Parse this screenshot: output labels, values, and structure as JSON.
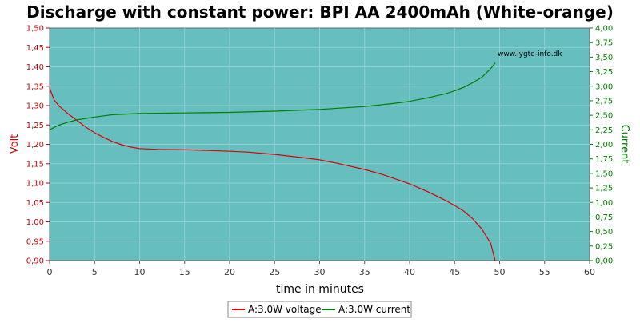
{
  "chart_data": {
    "type": "line",
    "title": "Discharge with constant power: BPI AA 2400mAh (White-orange)",
    "xlabel": "time in minutes",
    "ylabel_left": "Volt",
    "ylabel_right": "Current",
    "xlim": [
      0,
      60
    ],
    "ylim_left": [
      0.9,
      1.5
    ],
    "ylim_right": [
      0,
      4
    ],
    "x_ticks": [
      "0",
      "5",
      "10",
      "15",
      "20",
      "25",
      "30",
      "35",
      "40",
      "45",
      "50",
      "55",
      "60"
    ],
    "y_left_ticks": [
      "0,90",
      "0,95",
      "1,00",
      "1,05",
      "1,10",
      "1,15",
      "1,20",
      "1,25",
      "1,30",
      "1,35",
      "1,40",
      "1,45",
      "1,50"
    ],
    "y_right_ticks": [
      "0,00",
      "0,25",
      "0,50",
      "0,75",
      "1,00",
      "1,25",
      "1,50",
      "1,75",
      "2,00",
      "2,25",
      "2,50",
      "2,75",
      "3,00",
      "3,25",
      "3,50",
      "3,75",
      "4,00"
    ],
    "grid": true,
    "watermark": "www.lygte-info.dk",
    "legend_position": "bottom-center",
    "background_color": "#66bebe",
    "series": [
      {
        "name": "A:3.0W voltage",
        "axis": "left",
        "color": "#dd0000",
        "x": [
          0,
          0.5,
          1,
          2,
          3,
          4,
          5,
          6,
          7,
          8,
          9,
          10,
          12,
          15,
          18,
          20,
          22,
          25,
          28,
          30,
          32,
          35,
          37,
          39,
          40,
          42,
          44,
          45,
          46,
          47,
          48,
          49,
          49.5
        ],
        "y": [
          1.345,
          1.315,
          1.3,
          1.28,
          1.262,
          1.245,
          1.23,
          1.218,
          1.207,
          1.199,
          1.193,
          1.189,
          1.187,
          1.186,
          1.184,
          1.182,
          1.18,
          1.174,
          1.166,
          1.16,
          1.151,
          1.135,
          1.122,
          1.106,
          1.098,
          1.078,
          1.055,
          1.042,
          1.028,
          1.008,
          0.982,
          0.945,
          0.9
        ]
      },
      {
        "name": "A:3.0W current",
        "axis": "right",
        "color": "#008000",
        "x": [
          0,
          1,
          2,
          3,
          5,
          7,
          10,
          15,
          20,
          25,
          30,
          35,
          38,
          40,
          42,
          44,
          45,
          46,
          47,
          48,
          49,
          49.5
        ],
        "y": [
          2.25,
          2.33,
          2.38,
          2.42,
          2.47,
          2.51,
          2.53,
          2.54,
          2.55,
          2.57,
          2.6,
          2.65,
          2.7,
          2.74,
          2.8,
          2.87,
          2.92,
          2.98,
          3.06,
          3.15,
          3.3,
          3.4
        ]
      }
    ]
  }
}
